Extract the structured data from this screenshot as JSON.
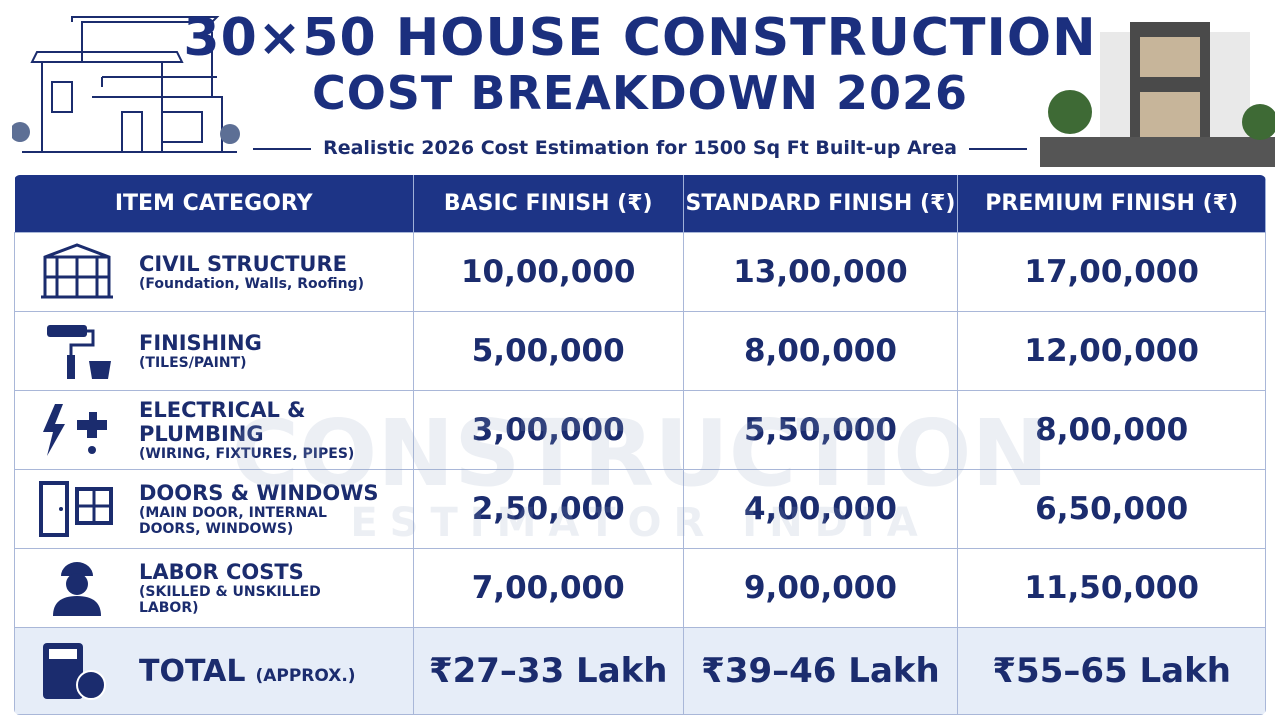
{
  "header": {
    "title_line1": "30×50 HOUSE CONSTRUCTION",
    "title_line2": "COST BREAKDOWN 2026",
    "subtitle": "Realistic 2026 Cost Estimation for 1500 Sq Ft Built-up Area"
  },
  "watermark": {
    "line1": "CONSTRUCTION",
    "line2": "ESTIMATOR INDIA"
  },
  "table": {
    "columns": [
      "ITEM CATEGORY",
      "BASIC FINISH (₹)",
      "STANDARD FINISH (₹)",
      "PREMIUM FINISH (₹)"
    ],
    "rows": [
      {
        "name": "CIVIL STRUCTURE",
        "detail": "(Foundation, Walls, Roofing)",
        "values": [
          "10,00,000",
          "13,00,000",
          "17,00,000"
        ]
      },
      {
        "name": "FINISHING",
        "detail": "(TILES/PAINT)",
        "values": [
          "5,00,000",
          "8,00,000",
          "12,00,000"
        ]
      },
      {
        "name": "ELECTRICAL & PLUMBING",
        "detail": "(WIRING, FIXTURES, PIPES)",
        "values": [
          "3,00,000",
          "5,50,000",
          "8,00,000"
        ]
      },
      {
        "name": "DOORS & WINDOWS",
        "detail": "(MAIN DOOR, INTERNAL DOORS, WINDOWS)",
        "values": [
          "2,50,000",
          "4,00,000",
          "6,50,000"
        ]
      },
      {
        "name": "LABOR COSTS",
        "detail": "(SKILLED & UNSKILLED LABOR)",
        "values": [
          "7,00,000",
          "9,00,000",
          "11,50,000"
        ]
      }
    ],
    "total": {
      "name": "TOTAL",
      "note": "(APPROX.)",
      "values": [
        "₹27–33 Lakh",
        "₹39–46 Lakh",
        "₹55–65 Lakh"
      ]
    }
  }
}
